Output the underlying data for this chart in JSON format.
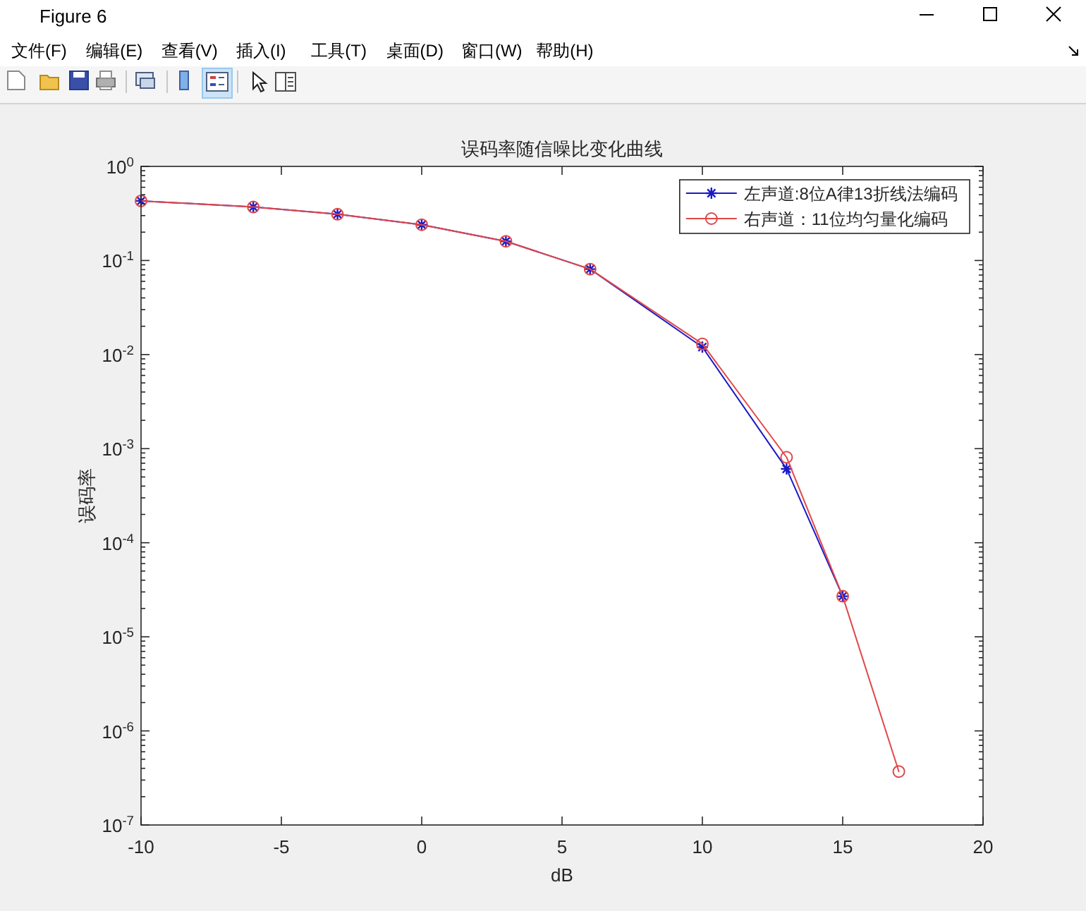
{
  "chart_data": {
    "type": "line",
    "title": "误码率随信噪比变化曲线",
    "xlabel": "dB",
    "ylabel": "误码率",
    "x": [
      -10,
      -6,
      -3,
      0,
      3,
      6,
      10,
      13,
      15,
      17
    ],
    "series": [
      {
        "name": "左声道:8位A律13折线法编码",
        "color": "#1a1ac8",
        "marker": "cross",
        "x": [
          -10,
          -6,
          -3,
          0,
          3,
          6,
          10,
          13,
          15
        ],
        "values": [
          0.43,
          0.37,
          0.31,
          0.24,
          0.16,
          0.081,
          0.012,
          0.00061,
          2.7e-05
        ]
      },
      {
        "name": "右声道：11位均匀量化编码",
        "color": "#e04848",
        "marker": "circle",
        "values": [
          0.43,
          0.37,
          0.31,
          0.24,
          0.16,
          0.081,
          0.013,
          0.00081,
          2.7e-05,
          3.7e-07
        ]
      }
    ],
    "log": "y",
    "xlim": [
      -10,
      20
    ],
    "xticks": [
      -10,
      -5,
      0,
      5,
      10,
      15,
      20
    ],
    "ylim": [
      1e-07,
      1
    ],
    "yticks": [
      {
        "value": 1e-07,
        "label": "10$^{-7}$"
      },
      {
        "value": 2e-07,
        "label": null
      },
      {
        "value": 3e-07,
        "label": null
      },
      {
        "value": 4e-07,
        "label": null
      },
      {
        "value": 5e-07,
        "label": null
      },
      {
        "value": 6e-07,
        "label": null
      },
      {
        "value": 7e-07,
        "label": null
      },
      {
        "value": 8e-07,
        "label": null
      },
      {
        "value": 9e-07,
        "label": null
      },
      {
        "value": 1e-06,
        "label": "10$^{-6}$"
      },
      {
        "value": 2e-06,
        "label": null
      },
      {
        "value": 3e-06,
        "label": null
      },
      {
        "value": 4e-06,
        "label": null
      },
      {
        "value": 5e-06,
        "label": null
      },
      {
        "value": 6e-06,
        "label": null
      },
      {
        "value": 7e-06,
        "label": null
      },
      {
        "value": 8e-06,
        "label": null
      },
      {
        "value": 9e-06,
        "label": null
      },
      {
        "value": 1e-05,
        "label": "10$^{-5}$"
      },
      {
        "value": 2e-05,
        "label": null
      },
      {
        "value": 3e-05,
        "label": null
      },
      {
        "value": 4e-05,
        "label": null
      },
      {
        "value": 5e-05,
        "label": null
      },
      {
        "value": 6e-05,
        "label": null
      },
      {
        "value": 7e-05,
        "label": null
      },
      {
        "value": 8e-05,
        "label": null
      },
      {
        "value": 9e-05,
        "label": null
      },
      {
        "value": 0.0001,
        "label": "10$^{-4}$"
      },
      {
        "value": 0.0002,
        "label": null
      },
      {
        "value": 0.0003,
        "label": null
      },
      {
        "value": 0.0004,
        "label": null
      },
      {
        "value": 0.0005,
        "label": null
      },
      {
        "value": 0.0006,
        "label": null
      },
      {
        "value": 0.0007,
        "label": null
      },
      {
        "value": 0.0008,
        "label": null
      },
      {
        "value": 0.0009,
        "label": null
      },
      {
        "value": 0.001,
        "label": "10$^{-3}$"
      },
      {
        "value": 0.002,
        "label": null
      },
      {
        "value": 0.003,
        "label": null
      },
      {
        "value": 0.004,
        "label": null
      },
      {
        "value": 0.005,
        "label": null
      },
      {
        "value": 0.006,
        "label": null
      },
      {
        "value": 0.007,
        "label": null
      },
      {
        "value": 0.008,
        "label": null
      },
      {
        "value": 0.009,
        "label": null
      },
      {
        "value": 0.01,
        "label": "10$^{-2}$"
      },
      {
        "value": 0.02,
        "label": null
      },
      {
        "value": 0.03,
        "label": null
      },
      {
        "value": 0.04,
        "label": null
      },
      {
        "value": 0.05,
        "label": null
      },
      {
        "value": 0.06,
        "label": null
      },
      {
        "value": 0.07,
        "label": null
      },
      {
        "value": 0.08,
        "label": null
      },
      {
        "value": 0.09,
        "label": null
      },
      {
        "value": 0.1,
        "label": "10$^{-1}$"
      },
      {
        "value": 0.2,
        "label": null
      },
      {
        "value": 0.3,
        "label": null
      },
      {
        "value": 0.4,
        "label": null
      },
      {
        "value": 0.5,
        "label": null
      },
      {
        "value": 0.6,
        "label": null
      },
      {
        "value": 0.7,
        "label": null
      },
      {
        "value": 0.8,
        "label": null
      },
      {
        "value": 0.9,
        "label": null
      },
      {
        "value": 1,
        "label": "10$^{0}$"
      }
    ],
    "grid": false,
    "legend": "top right",
    "annotations": [
      "Figure 6",
      "文件(F)",
      "编辑(E)",
      "查看(V)",
      "插入(I)",
      "工具(T)",
      "桌面(D)",
      "窗口(W)",
      "帮助(H)"
    ]
  }
}
